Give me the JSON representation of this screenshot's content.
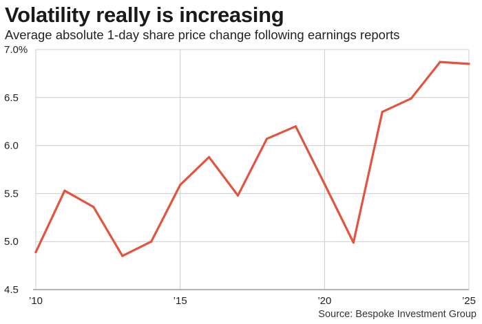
{
  "header": {
    "title": "Volatility really is increasing",
    "subtitle": "Average absolute 1-day share price change following earnings reports"
  },
  "footer": {
    "source": "Source: Bespoke Investment Group"
  },
  "colors": {
    "line": "#e4533d",
    "grid": "#cccccc",
    "axis": "#888888"
  },
  "chart_data": {
    "type": "line",
    "title": "Volatility really is increasing",
    "subtitle": "Average absolute 1-day share price change following earnings reports",
    "xlabel": "",
    "ylabel": "",
    "xlim": [
      2010,
      2025
    ],
    "ylim": [
      4.5,
      7.0
    ],
    "grid": true,
    "x_ticks": [
      {
        "value": 2010,
        "label": "’10"
      },
      {
        "value": 2015,
        "label": "’15"
      },
      {
        "value": 2020,
        "label": "’20"
      },
      {
        "value": 2025,
        "label": "’25"
      }
    ],
    "y_ticks": [
      {
        "value": 7.0,
        "label": "7.0%"
      },
      {
        "value": 6.5,
        "label": "6.5"
      },
      {
        "value": 6.0,
        "label": "6.0"
      },
      {
        "value": 5.5,
        "label": "5.5"
      },
      {
        "value": 5.0,
        "label": "5.0"
      },
      {
        "value": 4.5,
        "label": "4.5"
      }
    ],
    "series": [
      {
        "name": "Average absolute 1-day share price change (%)",
        "x": [
          2010,
          2011,
          2012,
          2013,
          2014,
          2015,
          2016,
          2017,
          2018,
          2019,
          2020,
          2021,
          2022,
          2023,
          2024,
          2025
        ],
        "values": [
          4.89,
          5.53,
          5.36,
          4.85,
          5.0,
          5.59,
          5.88,
          5.48,
          6.07,
          6.2,
          5.6,
          4.99,
          6.35,
          6.49,
          6.87,
          6.85
        ]
      }
    ]
  }
}
